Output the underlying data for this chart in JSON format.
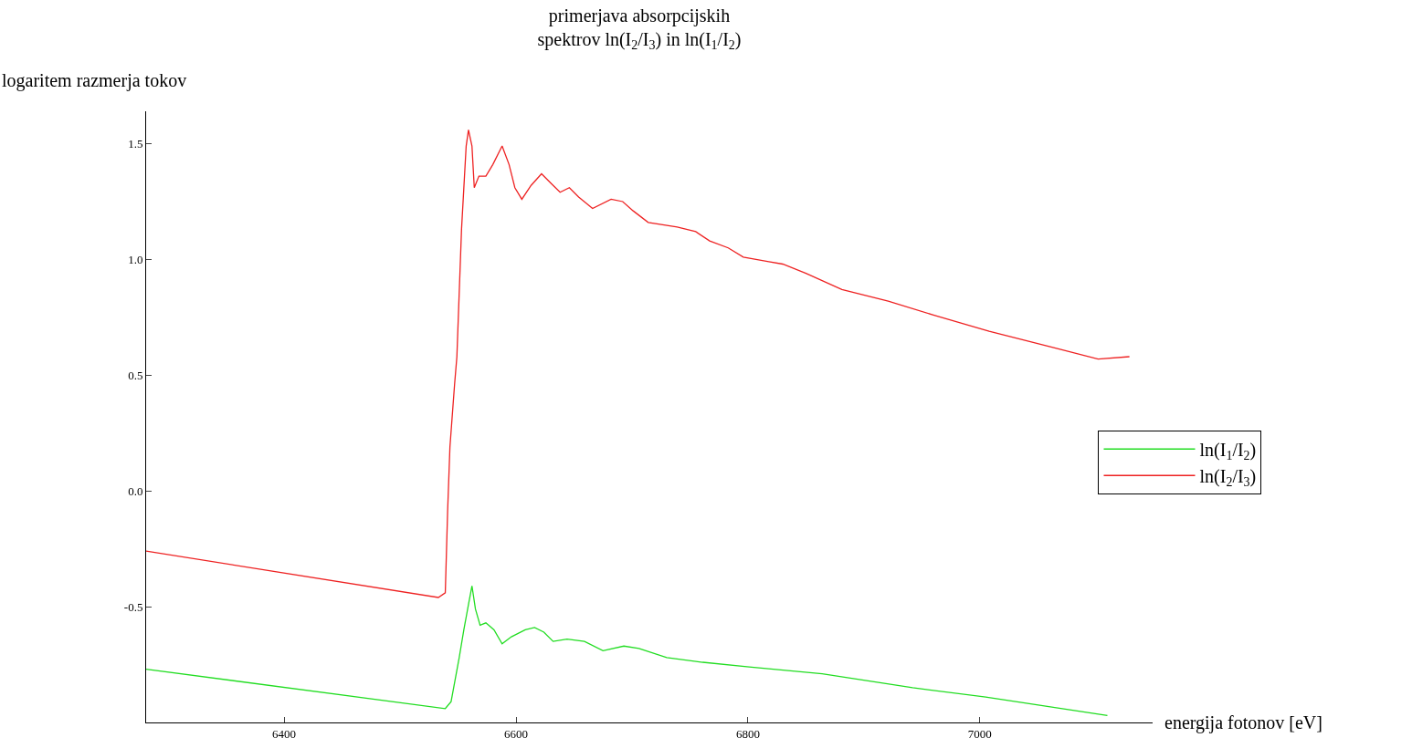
{
  "chart_data": {
    "type": "line",
    "title": "primerjava absorpcijskih\nspektrov ln(I$_{2}$/I$_{3}$) in ln(I$_{1}$/I$_{2}$)",
    "xlabel": "energija fotonov [eV]",
    "ylabel": "logaritem razmerja tokov",
    "xlim": [
      6281,
      7149
    ],
    "ylim": [
      -1.0,
      1.64
    ],
    "xticks": [
      6400,
      6600,
      6800,
      7000
    ],
    "yticks": [
      {
        "value": -0.5,
        "label": "-0.5"
      },
      {
        "value": 0,
        "label": "0.0"
      },
      {
        "value": 0.5,
        "label": "0.5"
      },
      {
        "value": 1,
        "label": "1.0"
      },
      {
        "value": 1.5,
        "label": "1.5"
      }
    ],
    "grid": false,
    "legend": "right",
    "marker": "none",
    "line_style": "solid",
    "series": [
      {
        "name": "ln(I$_{1}$/I$_{2}$)",
        "color": "#22dd22",
        "x": [
          6281,
          6539,
          6544,
          6551,
          6555,
          6559,
          6562,
          6565,
          6569,
          6574,
          6581,
          6588,
          6596,
          6608,
          6616,
          6624,
          6632,
          6644,
          6659,
          6675,
          6693,
          6706,
          6730,
          6761,
          6801,
          6864,
          6942,
          7005,
          7110
        ],
        "values": [
          -0.77,
          -0.94,
          -0.91,
          -0.72,
          -0.6,
          -0.49,
          -0.41,
          -0.51,
          -0.58,
          -0.57,
          -0.6,
          -0.66,
          -0.63,
          -0.6,
          -0.59,
          -0.61,
          -0.65,
          -0.64,
          -0.65,
          -0.69,
          -0.67,
          -0.68,
          -0.72,
          -0.74,
          -0.76,
          -0.79,
          -0.85,
          -0.89,
          -0.97
        ]
      },
      {
        "name": "ln(I$_{2}$/I$_{3}$)",
        "color": "#ee2222",
        "x": [
          6281,
          6533,
          6539,
          6541,
          6543,
          6547,
          6549,
          6553,
          6557,
          6559,
          6562,
          6564,
          6568,
          6574,
          6580,
          6588,
          6594,
          6599,
          6605,
          6613,
          6622,
          6630,
          6638,
          6646,
          6654,
          6666,
          6682,
          6692,
          6701,
          6714,
          6739,
          6755,
          6767,
          6783,
          6796,
          6818,
          6830,
          6850,
          6881,
          6921,
          6960,
          7008,
          7063,
          7102,
          7129
        ],
        "values": [
          -0.26,
          -0.46,
          -0.44,
          -0.09,
          0.19,
          0.46,
          0.58,
          1.13,
          1.49,
          1.56,
          1.49,
          1.31,
          1.36,
          1.36,
          1.41,
          1.49,
          1.41,
          1.31,
          1.26,
          1.32,
          1.37,
          1.33,
          1.29,
          1.31,
          1.27,
          1.22,
          1.26,
          1.25,
          1.21,
          1.16,
          1.14,
          1.12,
          1.08,
          1.05,
          1.01,
          0.99,
          0.98,
          0.94,
          0.87,
          0.82,
          0.76,
          0.69,
          0.62,
          0.57,
          0.58
        ]
      }
    ]
  }
}
